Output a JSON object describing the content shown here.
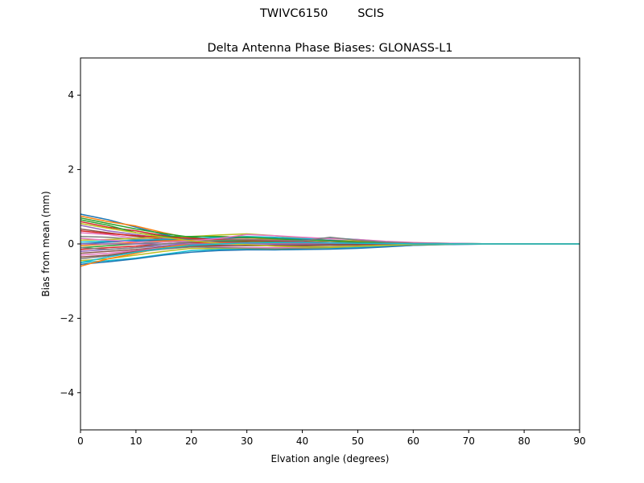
{
  "figure": {
    "suptitle": "TWIVC6150        SCIS"
  },
  "chart_data": {
    "type": "line",
    "title": "Delta Antenna Phase Biases: GLONASS-L1",
    "xlabel": "Elvation angle (degrees)",
    "ylabel": "Bias from mean (mm)",
    "xlim": [
      0,
      90
    ],
    "ylim": [
      -5,
      5
    ],
    "xticks": [
      0,
      10,
      20,
      30,
      40,
      50,
      60,
      70,
      80,
      90
    ],
    "yticks": [
      -4,
      -2,
      0,
      2,
      4
    ],
    "ytick_labels": [
      "−4",
      "−2",
      "0",
      "2",
      "4"
    ],
    "grid": false,
    "legend": "none",
    "palette": [
      "#1f77b4",
      "#ff7f0e",
      "#2ca02c",
      "#d62728",
      "#9467bd",
      "#8c564b",
      "#e377c2",
      "#7f7f7f",
      "#bcbd22",
      "#17becf"
    ],
    "x": [
      0,
      5,
      10,
      15,
      20,
      25,
      30,
      35,
      40,
      45,
      50,
      55,
      60,
      65,
      70,
      75,
      80,
      85,
      90
    ],
    "series": [
      {
        "values": [
          0.8,
          0.65,
          0.45,
          0.25,
          0.1,
          0.05,
          0.02,
          0.01,
          0.0,
          0.0,
          0.0,
          0.0,
          0.0,
          0.0,
          0.0,
          0.0,
          0.0,
          0.0,
          0.0
        ]
      },
      {
        "values": [
          0.75,
          0.6,
          0.48,
          0.3,
          0.15,
          0.1,
          0.08,
          0.05,
          0.03,
          0.02,
          0.01,
          0.01,
          0.0,
          0.0,
          0.0,
          0.0,
          0.0,
          0.0,
          0.0
        ]
      },
      {
        "values": [
          0.7,
          0.55,
          0.4,
          0.28,
          0.18,
          0.12,
          0.1,
          0.06,
          0.04,
          0.02,
          0.01,
          0.0,
          0.0,
          0.0,
          0.0,
          0.0,
          0.0,
          0.0,
          0.0
        ]
      },
      {
        "values": [
          0.6,
          0.45,
          0.35,
          0.22,
          0.12,
          0.08,
          0.05,
          0.03,
          0.02,
          0.01,
          0.0,
          0.0,
          0.0,
          0.0,
          0.0,
          0.0,
          0.0,
          0.0,
          0.0
        ]
      },
      {
        "values": [
          0.5,
          0.35,
          0.25,
          0.15,
          0.08,
          0.06,
          0.04,
          0.02,
          0.01,
          0.0,
          0.0,
          0.0,
          0.0,
          0.0,
          0.0,
          0.0,
          0.0,
          0.0,
          0.0
        ]
      },
      {
        "values": [
          0.4,
          0.3,
          0.2,
          0.12,
          0.05,
          0.03,
          0.01,
          0.0,
          0.0,
          0.0,
          0.0,
          0.0,
          0.0,
          0.0,
          0.0,
          0.0,
          0.0,
          0.0,
          0.0
        ]
      },
      {
        "values": [
          0.3,
          0.25,
          0.15,
          0.1,
          0.06,
          0.04,
          0.02,
          0.01,
          0.0,
          0.0,
          0.0,
          0.0,
          0.0,
          0.0,
          0.0,
          0.0,
          0.0,
          0.0,
          0.0
        ]
      },
      {
        "values": [
          0.2,
          0.18,
          0.12,
          0.08,
          0.04,
          0.02,
          0.01,
          0.0,
          0.0,
          0.0,
          0.0,
          0.0,
          0.0,
          0.0,
          0.0,
          0.0,
          0.0,
          0.0,
          0.0
        ]
      },
      {
        "values": [
          0.1,
          0.12,
          0.15,
          0.18,
          0.2,
          0.24,
          0.27,
          0.22,
          0.15,
          0.1,
          0.08,
          0.05,
          0.03,
          0.02,
          0.01,
          0.0,
          0.0,
          0.0,
          0.0
        ]
      },
      {
        "values": [
          0.05,
          0.08,
          0.1,
          0.12,
          0.14,
          0.18,
          0.2,
          0.18,
          0.14,
          0.16,
          0.12,
          0.06,
          0.03,
          0.02,
          0.01,
          0.0,
          0.0,
          0.0,
          0.0
        ]
      },
      {
        "values": [
          0.0,
          0.05,
          0.08,
          0.1,
          0.12,
          0.15,
          0.17,
          0.15,
          0.12,
          0.1,
          0.06,
          0.04,
          0.02,
          0.01,
          0.0,
          0.0,
          0.0,
          0.0,
          0.0
        ]
      },
      {
        "values": [
          -0.05,
          0.0,
          0.04,
          0.08,
          0.1,
          0.12,
          0.13,
          0.12,
          0.1,
          0.08,
          0.06,
          0.04,
          0.02,
          0.01,
          0.0,
          0.0,
          0.0,
          0.0,
          0.0
        ]
      },
      {
        "values": [
          -0.1,
          -0.05,
          0.0,
          0.05,
          0.08,
          0.08,
          0.08,
          0.07,
          0.06,
          0.04,
          0.03,
          0.02,
          0.01,
          0.0,
          0.0,
          0.0,
          0.0,
          0.0,
          0.0
        ]
      },
      {
        "values": [
          -0.15,
          -0.1,
          -0.06,
          0.0,
          0.04,
          0.04,
          0.04,
          0.03,
          0.02,
          0.02,
          0.01,
          0.01,
          0.0,
          0.0,
          0.0,
          0.0,
          0.0,
          0.0,
          0.0
        ]
      },
      {
        "values": [
          -0.2,
          -0.15,
          -0.1,
          -0.05,
          0.0,
          0.0,
          0.0,
          0.0,
          0.0,
          0.0,
          0.0,
          0.0,
          0.0,
          0.0,
          0.0,
          0.0,
          0.0,
          0.0,
          0.0
        ]
      },
      {
        "values": [
          -0.25,
          -0.2,
          -0.15,
          -0.08,
          -0.03,
          -0.04,
          -0.05,
          -0.05,
          -0.05,
          -0.04,
          -0.03,
          -0.02,
          -0.01,
          0.0,
          0.0,
          0.0,
          0.0,
          0.0,
          0.0
        ]
      },
      {
        "values": [
          -0.3,
          -0.25,
          -0.18,
          -0.1,
          -0.06,
          -0.08,
          -0.1,
          -0.1,
          -0.09,
          -0.08,
          -0.06,
          -0.04,
          -0.02,
          -0.01,
          0.0,
          0.0,
          0.0,
          0.0,
          0.0
        ]
      },
      {
        "values": [
          -0.4,
          -0.32,
          -0.22,
          -0.14,
          -0.08,
          -0.1,
          -0.12,
          -0.13,
          -0.12,
          -0.1,
          -0.08,
          -0.05,
          -0.03,
          -0.01,
          0.0,
          0.0,
          0.0,
          0.0,
          0.0
        ]
      },
      {
        "values": [
          -0.45,
          -0.4,
          -0.3,
          -0.2,
          -0.12,
          -0.13,
          -0.14,
          -0.15,
          -0.14,
          -0.12,
          -0.1,
          -0.06,
          -0.03,
          -0.01,
          0.0,
          0.0,
          0.0,
          0.0,
          0.0
        ]
      },
      {
        "values": [
          -0.5,
          -0.45,
          -0.38,
          -0.28,
          -0.18,
          -0.15,
          -0.15,
          -0.16,
          -0.15,
          -0.13,
          -0.1,
          -0.07,
          -0.04,
          -0.02,
          0.0,
          0.0,
          0.0,
          0.0,
          0.0
        ]
      },
      {
        "values": [
          -0.55,
          -0.48,
          -0.4,
          -0.3,
          -0.22,
          -0.18,
          -0.16,
          -0.16,
          -0.15,
          -0.14,
          -0.12,
          -0.08,
          -0.04,
          -0.02,
          -0.01,
          0.0,
          0.0,
          0.0,
          0.0
        ]
      },
      {
        "values": [
          -0.6,
          -0.4,
          -0.25,
          -0.1,
          0.0,
          0.02,
          0.02,
          0.01,
          0.0,
          0.0,
          0.0,
          0.0,
          0.0,
          0.0,
          0.0,
          0.0,
          0.0,
          0.0,
          0.0
        ]
      },
      {
        "values": [
          0.65,
          0.5,
          0.3,
          0.2,
          0.2,
          0.2,
          0.18,
          0.14,
          0.1,
          0.08,
          0.05,
          0.03,
          0.02,
          0.01,
          0.0,
          0.0,
          0.0,
          0.0,
          0.0
        ]
      },
      {
        "values": [
          0.35,
          0.28,
          0.22,
          0.18,
          0.15,
          0.12,
          0.1,
          0.08,
          0.06,
          0.04,
          0.02,
          0.01,
          0.0,
          0.0,
          0.0,
          0.0,
          0.0,
          0.0,
          0.0
        ]
      },
      {
        "values": [
          0.0,
          0.0,
          0.0,
          0.0,
          0.0,
          0.0,
          0.0,
          0.0,
          0.0,
          0.0,
          0.0,
          0.0,
          0.0,
          0.0,
          0.0,
          0.0,
          0.0,
          0.0,
          0.0
        ]
      },
      {
        "values": [
          -0.35,
          -0.3,
          -0.2,
          -0.12,
          -0.06,
          -0.05,
          -0.05,
          -0.04,
          -0.03,
          -0.02,
          -0.01,
          0.0,
          0.0,
          0.0,
          0.0,
          0.0,
          0.0,
          0.0,
          0.0
        ]
      },
      {
        "values": [
          0.15,
          0.1,
          0.05,
          0.05,
          0.08,
          0.15,
          0.25,
          0.22,
          0.18,
          0.14,
          0.12,
          0.07,
          0.04,
          0.02,
          0.01,
          0.0,
          0.0,
          0.0,
          0.0
        ]
      },
      {
        "values": [
          -0.1,
          -0.15,
          -0.1,
          0.0,
          0.05,
          0.1,
          0.12,
          0.1,
          0.08,
          0.18,
          0.1,
          0.05,
          0.02,
          0.01,
          0.0,
          0.0,
          0.0,
          0.0,
          0.0
        ]
      },
      {
        "values": [
          0.55,
          0.42,
          0.3,
          0.18,
          0.08,
          0.02,
          -0.02,
          -0.06,
          -0.08,
          -0.08,
          -0.06,
          -0.04,
          -0.02,
          -0.01,
          0.0,
          0.0,
          0.0,
          0.0,
          0.0
        ]
      },
      {
        "values": [
          -0.5,
          -0.35,
          -0.22,
          -0.12,
          -0.04,
          0.0,
          0.03,
          0.04,
          0.04,
          0.03,
          0.02,
          0.01,
          0.0,
          0.0,
          0.0,
          0.0,
          0.0,
          0.0,
          0.0
        ]
      }
    ]
  }
}
